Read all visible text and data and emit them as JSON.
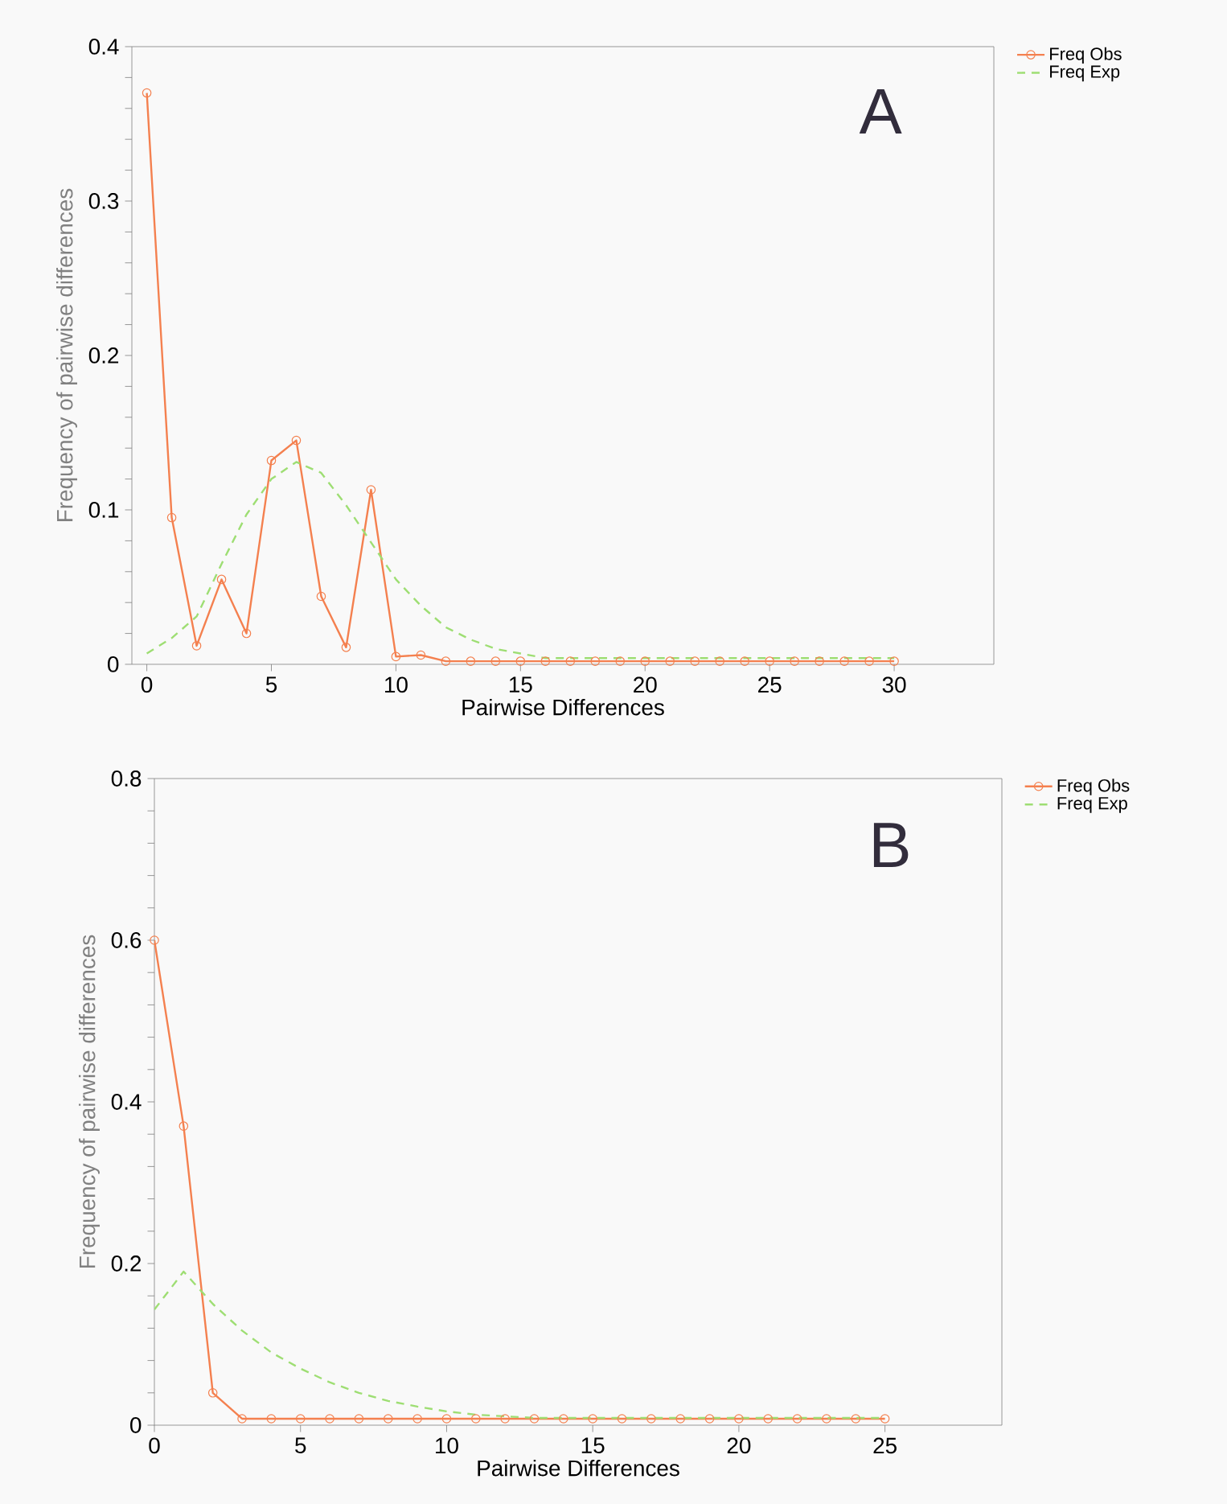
{
  "chart_data": [
    {
      "type": "line",
      "xlabel": "Pairwise Differences",
      "ylabel": "Frequency of pairwise differences",
      "annotations": [
        "A"
      ],
      "x": [
        0,
        1,
        2,
        3,
        4,
        5,
        6,
        7,
        8,
        9,
        10,
        11,
        12,
        13,
        14,
        15,
        16,
        17,
        18,
        19,
        20,
        21,
        22,
        23,
        24,
        25,
        26,
        27,
        28,
        29,
        30
      ],
      "series": [
        {
          "name": "Freq Obs",
          "color": "#f4804f",
          "marker": "circle",
          "line_style": "solid",
          "values": [
            0.37,
            0.095,
            0.012,
            0.055,
            0.02,
            0.132,
            0.145,
            0.044,
            0.011,
            0.113,
            0.005,
            0.006,
            0.002,
            0.002,
            0.002,
            0.002,
            0.002,
            0.002,
            0.002,
            0.002,
            0.002,
            0.002,
            0.002,
            0.002,
            0.002,
            0.002,
            0.002,
            0.002,
            0.002,
            0.002,
            0.002
          ]
        },
        {
          "name": "Freq Exp",
          "color": "#9ede73",
          "marker": "none",
          "line_style": "dashed",
          "values": [
            0.007,
            0.017,
            0.031,
            0.065,
            0.097,
            0.12,
            0.131,
            0.124,
            0.103,
            0.079,
            0.055,
            0.038,
            0.024,
            0.016,
            0.01,
            0.007,
            0.004,
            0.004,
            0.004,
            0.004,
            0.004,
            0.004,
            0.004,
            0.004,
            0.004,
            0.004,
            0.004,
            0.004,
            0.004,
            0.004,
            0.004
          ]
        }
      ],
      "xlim": [
        -0.6,
        34
      ],
      "ylim": [
        0,
        0.4
      ],
      "xticks": [
        0,
        5,
        10,
        15,
        20,
        25,
        30
      ],
      "yticks": [
        0,
        {
          "value": 0.02,
          "label": null
        },
        {
          "value": 0.04,
          "label": null
        },
        {
          "value": 0.06,
          "label": null
        },
        {
          "value": 0.08,
          "label": null
        },
        0.1,
        {
          "value": 0.12,
          "label": null
        },
        {
          "value": 0.14,
          "label": null
        },
        {
          "value": 0.16,
          "label": null
        },
        {
          "value": 0.18,
          "label": null
        },
        0.2,
        {
          "value": 0.22,
          "label": null
        },
        {
          "value": 0.24,
          "label": null
        },
        {
          "value": 0.26,
          "label": null
        },
        {
          "value": 0.28,
          "label": null
        },
        0.3,
        {
          "value": 0.32,
          "label": null
        },
        {
          "value": 0.34,
          "label": null
        },
        {
          "value": 0.36,
          "label": null
        },
        {
          "value": 0.38,
          "label": null
        },
        0.4
      ],
      "grid": false,
      "legend": "top right"
    },
    {
      "type": "line",
      "xlabel": "Pairwise Differences",
      "ylabel": "Frequency of pairwise differences",
      "annotations": [
        "B"
      ],
      "x": [
        0,
        1,
        2,
        3,
        4,
        5,
        6,
        7,
        8,
        9,
        10,
        11,
        12,
        13,
        14,
        15,
        16,
        17,
        18,
        19,
        20,
        21,
        22,
        23,
        24,
        25
      ],
      "series": [
        {
          "name": "Freq Obs",
          "color": "#f4804f",
          "marker": "circle",
          "line_style": "solid",
          "values": [
            0.6,
            0.37,
            0.04,
            0.008,
            0.008,
            0.008,
            0.008,
            0.008,
            0.008,
            0.008,
            0.008,
            0.008,
            0.008,
            0.008,
            0.008,
            0.008,
            0.008,
            0.008,
            0.008,
            0.008,
            0.008,
            0.008,
            0.008,
            0.008,
            0.008,
            0.008
          ]
        },
        {
          "name": "Freq Exp",
          "color": "#9ede73",
          "marker": "none",
          "line_style": "dashed",
          "values": [
            0.143,
            0.19,
            0.15,
            0.117,
            0.09,
            0.07,
            0.053,
            0.04,
            0.03,
            0.023,
            0.017,
            0.013,
            0.011,
            0.009,
            0.009,
            0.009,
            0.009,
            0.009,
            0.009,
            0.009,
            0.009,
            0.009,
            0.009,
            0.009,
            0.009,
            0.009
          ]
        }
      ],
      "xlim": [
        0,
        29
      ],
      "ylim": [
        0,
        0.8
      ],
      "xticks": [
        0,
        5,
        10,
        15,
        20,
        25
      ],
      "yticks": [
        0,
        {
          "value": 0.04,
          "label": null
        },
        {
          "value": 0.08,
          "label": null
        },
        {
          "value": 0.12,
          "label": null
        },
        {
          "value": 0.16,
          "label": null
        },
        0.2,
        {
          "value": 0.24,
          "label": null
        },
        {
          "value": 0.28,
          "label": null
        },
        {
          "value": 0.32,
          "label": null
        },
        {
          "value": 0.36,
          "label": null
        },
        0.4,
        {
          "value": 0.44,
          "label": null
        },
        {
          "value": 0.48,
          "label": null
        },
        {
          "value": 0.52,
          "label": null
        },
        {
          "value": 0.56,
          "label": null
        },
        0.6,
        {
          "value": 0.64,
          "label": null
        },
        {
          "value": 0.68,
          "label": null
        },
        {
          "value": 0.72,
          "label": null
        },
        {
          "value": 0.76,
          "label": null
        },
        0.8
      ],
      "grid": false,
      "legend": "top right"
    }
  ]
}
